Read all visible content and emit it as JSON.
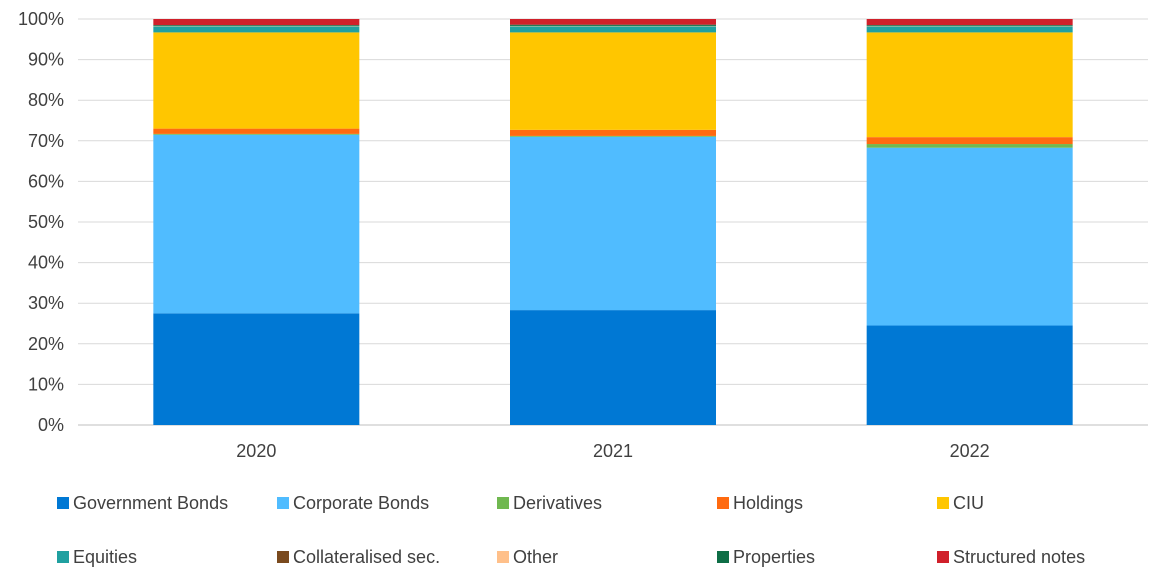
{
  "chart_data": {
    "type": "bar",
    "stacked": true,
    "percent": true,
    "title": "",
    "xlabel": "",
    "ylabel": "",
    "ylim": [
      0,
      100
    ],
    "y_ticks": [
      "0%",
      "10%",
      "20%",
      "30%",
      "40%",
      "50%",
      "60%",
      "70%",
      "80%",
      "90%",
      "100%"
    ],
    "grid": "horizontal",
    "legend_position": "bottom",
    "categories": [
      "2020",
      "2021",
      "2022"
    ],
    "series": [
      {
        "name": "Government Bonds",
        "color": "#0078D4",
        "values": [
          27.5,
          28.3,
          24.5
        ]
      },
      {
        "name": "Corporate Bonds",
        "color": "#50BCFF",
        "values": [
          44.0,
          42.7,
          43.8
        ]
      },
      {
        "name": "Derivatives",
        "color": "#70B850",
        "values": [
          0.2,
          0.2,
          0.9
        ]
      },
      {
        "name": "Holdings",
        "color": "#FF6A10",
        "values": [
          1.3,
          1.5,
          1.7
        ]
      },
      {
        "name": "CIU",
        "color": "#FFC600",
        "values": [
          23.7,
          24.0,
          25.8
        ]
      },
      {
        "name": "Equities",
        "color": "#20A0A0",
        "values": [
          1.5,
          1.5,
          1.5
        ]
      },
      {
        "name": "Collateralised sec.",
        "color": "#7A4A1E",
        "values": [
          0.0,
          0.0,
          0.0
        ]
      },
      {
        "name": "Other",
        "color": "#FFC08A",
        "values": [
          0.1,
          0.1,
          0.1
        ]
      },
      {
        "name": "Properties",
        "color": "#0E6E46",
        "values": [
          0.2,
          0.3,
          0.2
        ]
      },
      {
        "name": "Structured notes",
        "color": "#D0202A",
        "values": [
          1.5,
          1.4,
          1.5
        ]
      }
    ]
  }
}
